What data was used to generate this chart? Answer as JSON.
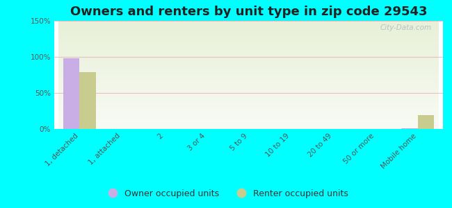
{
  "title": "Owners and renters by unit type in zip code 29543",
  "categories": [
    "1, detached",
    "1, attached",
    "2",
    "3 or 4",
    "5 to 9",
    "10 to 19",
    "20 to 49",
    "50 or more",
    "Mobile home"
  ],
  "owner_values": [
    98,
    0,
    0,
    0,
    0,
    0,
    0,
    0,
    1
  ],
  "renter_values": [
    79,
    0,
    0,
    0,
    0,
    0,
    0,
    0,
    19
  ],
  "owner_color": "#c9aee5",
  "renter_color": "#c8cc8e",
  "background_color": "#00ffff",
  "plot_bg_top": "#e8f0d8",
  "plot_bg_bottom": "#f8fbf4",
  "ylim": [
    0,
    150
  ],
  "yticks": [
    0,
    50,
    100,
    150
  ],
  "ytick_labels": [
    "0%",
    "50%",
    "100%",
    "150%"
  ],
  "owner_label": "Owner occupied units",
  "renter_label": "Renter occupied units",
  "watermark": "City-Data.com",
  "title_fontsize": 13,
  "tick_fontsize": 7.5,
  "legend_fontsize": 9
}
